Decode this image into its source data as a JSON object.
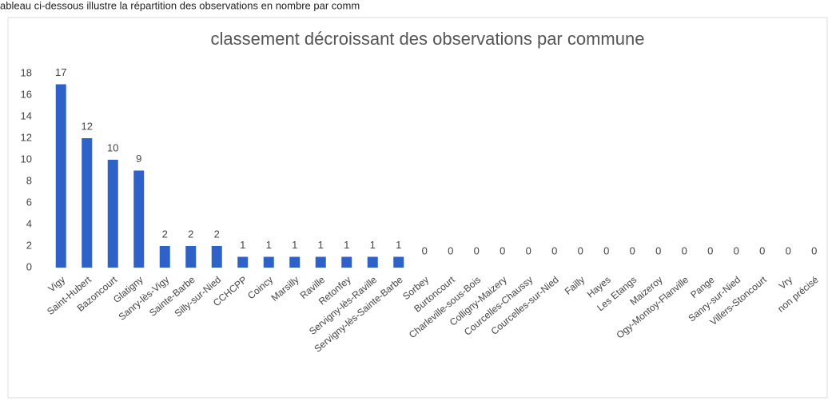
{
  "caption": "ableau ci-dessous illustre la répartition des observations en nombre par comm",
  "chart_data": {
    "type": "bar",
    "title": "classement décroissant des observations par commune",
    "categories": [
      "Vigy",
      "Saint-Hubert",
      "Bazoncourt",
      "Glatigny",
      "Sanry-lès-Vigy",
      "Sainte-Barbe",
      "Silly-sur-Nied",
      "CCHCPP",
      "Coincy",
      "Marsilly",
      "Raville",
      "Retonfey",
      "Servigny-lès-Raville",
      "Servigny-lès-Sainte-Barbe",
      "Sorbey",
      "Burtoncourt",
      "Charleville-sous-Bois",
      "Colligny-Maizery",
      "Courcelles-Chaussy",
      "Courcelles-sur-Nied",
      "Failly",
      "Hayes",
      "Les Etangs",
      "Maizeroy",
      "Ogy-Montoy-Flanville",
      "Pange",
      "Sanry-sur-Nied",
      "Villers-Stoncourt",
      "Vry",
      "non précisé"
    ],
    "values": [
      17,
      12,
      10,
      9,
      2,
      2,
      2,
      1,
      1,
      1,
      1,
      1,
      1,
      1,
      0,
      0,
      0,
      0,
      0,
      0,
      0,
      0,
      0,
      0,
      0,
      0,
      0,
      0,
      0,
      0
    ],
    "color": "#2e62c9",
    "ylim": [
      0,
      18
    ],
    "yticks": [
      0,
      2,
      4,
      6,
      8,
      10,
      12,
      14,
      16,
      18
    ],
    "grid": false
  }
}
